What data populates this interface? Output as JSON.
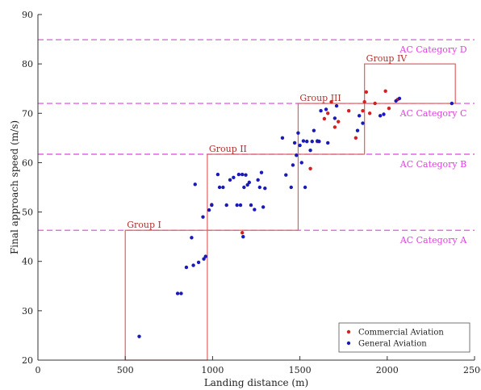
{
  "colors": {
    "commercial": "#d42020",
    "general": "#1a1ab8",
    "category_line": "#dd44dd",
    "group_box": "#e06060",
    "axis": "#333333"
  },
  "chart_data": {
    "type": "scatter",
    "xlabel": "Landing distance (m)",
    "ylabel": "Final approach speed (m/s)",
    "xlim": [
      0,
      2500
    ],
    "ylim": [
      20,
      90
    ],
    "xticks": [
      0,
      500,
      1000,
      1500,
      2000,
      2500
    ],
    "yticks": [
      20,
      30,
      40,
      50,
      60,
      70,
      80,
      90
    ],
    "grid": false,
    "legend_position": "bottom-right",
    "series": [
      {
        "name": "Commercial Aviation",
        "color": "#d42020",
        "points": [
          [
            995,
            51.5
          ],
          [
            1170,
            45.8
          ],
          [
            1560,
            58.8
          ],
          [
            1600,
            64.3
          ],
          [
            1640,
            68.9
          ],
          [
            1660,
            70.0
          ],
          [
            1680,
            72.3
          ],
          [
            1700,
            67.2
          ],
          [
            1720,
            68.3
          ],
          [
            1780,
            70.5
          ],
          [
            1820,
            65.0
          ],
          [
            1860,
            70.5
          ],
          [
            1870,
            72.3
          ],
          [
            1880,
            74.3
          ],
          [
            1900,
            70.0
          ],
          [
            1930,
            72.0
          ],
          [
            1990,
            74.5
          ],
          [
            2010,
            71.0
          ],
          [
            2060,
            72.8
          ]
        ]
      },
      {
        "name": "General Aviation",
        "color": "#1a1ab8",
        "points": [
          [
            580,
            24.8
          ],
          [
            800,
            33.5
          ],
          [
            820,
            33.5
          ],
          [
            850,
            38.8
          ],
          [
            880,
            44.8
          ],
          [
            890,
            39.2
          ],
          [
            900,
            55.6
          ],
          [
            920,
            39.8
          ],
          [
            945,
            49.0
          ],
          [
            950,
            40.5
          ],
          [
            960,
            41.0
          ],
          [
            980,
            50.4
          ],
          [
            995,
            51.4
          ],
          [
            1030,
            57.6
          ],
          [
            1040,
            55.0
          ],
          [
            1060,
            55.0
          ],
          [
            1080,
            51.4
          ],
          [
            1100,
            56.5
          ],
          [
            1120,
            57.0
          ],
          [
            1140,
            51.4
          ],
          [
            1150,
            57.6
          ],
          [
            1160,
            51.4
          ],
          [
            1170,
            57.6
          ],
          [
            1175,
            45.0
          ],
          [
            1180,
            55.0
          ],
          [
            1190,
            57.5
          ],
          [
            1200,
            55.5
          ],
          [
            1210,
            56.0
          ],
          [
            1220,
            51.4
          ],
          [
            1240,
            50.5
          ],
          [
            1260,
            56.5
          ],
          [
            1270,
            55.0
          ],
          [
            1280,
            58.0
          ],
          [
            1290,
            51.0
          ],
          [
            1300,
            54.8
          ],
          [
            1400,
            65.0
          ],
          [
            1420,
            57.5
          ],
          [
            1450,
            55.0
          ],
          [
            1460,
            59.5
          ],
          [
            1470,
            64.0
          ],
          [
            1480,
            61.5
          ],
          [
            1490,
            66.0
          ],
          [
            1500,
            63.5
          ],
          [
            1510,
            60.0
          ],
          [
            1520,
            64.4
          ],
          [
            1530,
            55.0
          ],
          [
            1540,
            64.3
          ],
          [
            1560,
            62.5
          ],
          [
            1570,
            64.3
          ],
          [
            1580,
            66.5
          ],
          [
            1600,
            64.4
          ],
          [
            1610,
            64.3
          ],
          [
            1620,
            70.5
          ],
          [
            1650,
            70.8
          ],
          [
            1660,
            64.0
          ],
          [
            1700,
            69.0
          ],
          [
            1710,
            71.5
          ],
          [
            1830,
            66.5
          ],
          [
            1840,
            69.5
          ],
          [
            1860,
            68.0
          ],
          [
            1960,
            69.5
          ],
          [
            1980,
            69.8
          ],
          [
            2050,
            72.5
          ],
          [
            2070,
            73.0
          ],
          [
            2370,
            72.0
          ]
        ]
      }
    ],
    "categories": [
      {
        "label": "AC Category A",
        "speed": 46.3
      },
      {
        "label": "AC Category B",
        "speed": 61.7
      },
      {
        "label": "AC Category C",
        "speed": 72.0
      },
      {
        "label": "AC Category D",
        "speed": 84.9
      }
    ],
    "groups": [
      {
        "label": "Group I",
        "x_range": [
          500,
          970
        ],
        "y_range": [
          20,
          46.3
        ]
      },
      {
        "label": "Group II",
        "x_range": [
          970,
          1490
        ],
        "y_range": [
          46.3,
          61.7
        ]
      },
      {
        "label": "Group III",
        "x_range": [
          1490,
          1870
        ],
        "y_range": [
          61.7,
          72.0
        ]
      },
      {
        "label": "Group IV",
        "x_range": [
          1870,
          2390
        ],
        "y_range": [
          72.0,
          80.0
        ]
      }
    ]
  }
}
